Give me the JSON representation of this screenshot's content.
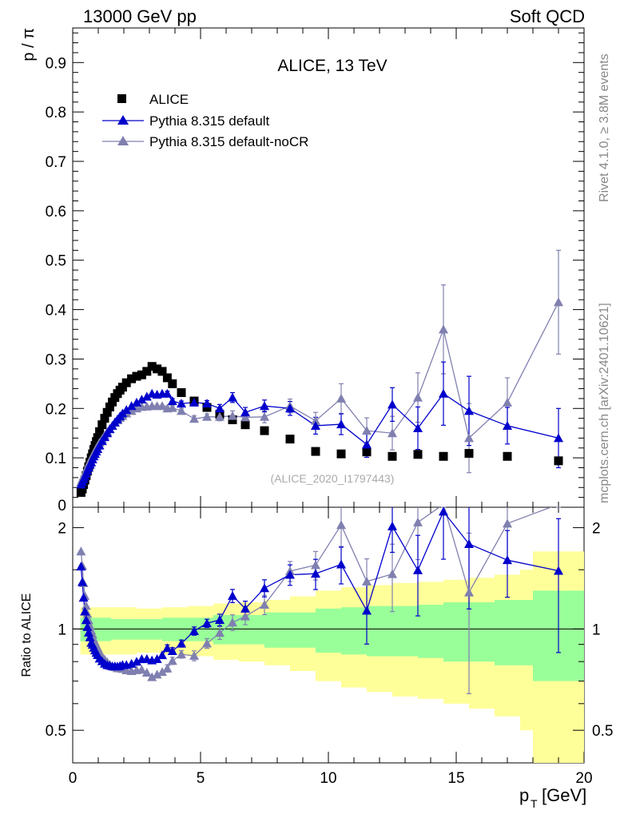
{
  "header": {
    "left": "13000 GeV pp",
    "right": "Soft QCD"
  },
  "side_labels": {
    "rivet": "Rivet 4.1.0, ≥ 3.8M events",
    "mcplots": "mcplots.cern.ch [arXiv:2401.10621]"
  },
  "chart_data": {
    "type": "scatter",
    "title": "ALICE, 13 TeV",
    "watermark": "(ALICE_2020_I1797443)",
    "ylabel": "p / π",
    "xlabel_main": "p",
    "xlabel_sub": "T",
    "xlabel_unit": "[GeV]",
    "ratio_ylabel": "Ratio to ALICE",
    "xlim": [
      0,
      20
    ],
    "ylim": [
      0,
      0.97
    ],
    "ratio_ylim": [
      0.4,
      2.3
    ],
    "x_ticks": [
      0,
      5,
      10,
      15,
      20
    ],
    "x_tick_labels": [
      "0",
      "5",
      "10",
      "15",
      "20"
    ],
    "y_ticks": [
      0.1,
      0.2,
      0.3,
      0.4,
      0.5,
      0.6,
      0.7,
      0.8,
      0.9
    ],
    "y_tick_labels": [
      "0.1",
      "0.2",
      "0.3",
      "0.4",
      "0.5",
      "0.6",
      "0.7",
      "0.8",
      "0.9"
    ],
    "y_zero_label": "0",
    "ratio_y_ticks": [
      0.5,
      1,
      2
    ],
    "ratio_y_tick_labels": [
      "0.5",
      "1",
      "2"
    ],
    "legend": {
      "position": "top-left",
      "entries": [
        "ALICE",
        "Pythia 8.315 default",
        "Pythia 8.315 default-noCR"
      ]
    },
    "colors": {
      "data": "#000000",
      "default": "#0000cc",
      "nocr": "#8080b0",
      "band_outer": "#ffff99",
      "band_inner": "#99ff99"
    },
    "series": [
      {
        "name": "ALICE",
        "x": [
          0.325,
          0.375,
          0.425,
          0.475,
          0.525,
          0.575,
          0.625,
          0.675,
          0.725,
          0.775,
          0.825,
          0.875,
          0.925,
          0.975,
          1.05,
          1.15,
          1.25,
          1.35,
          1.45,
          1.55,
          1.65,
          1.75,
          1.85,
          1.95,
          2.1,
          2.3,
          2.5,
          2.7,
          2.9,
          3.1,
          3.3,
          3.5,
          3.7,
          3.9,
          4.25,
          4.75,
          5.25,
          5.75,
          6.25,
          6.75,
          7.5,
          8.5,
          9.5,
          10.5,
          11.5,
          12.5,
          13.5,
          14.5,
          15.5,
          17.0,
          19.0
        ],
        "values": [
          0.03,
          0.037,
          0.046,
          0.055,
          0.064,
          0.073,
          0.082,
          0.091,
          0.1,
          0.108,
          0.117,
          0.125,
          0.133,
          0.141,
          0.153,
          0.167,
          0.18,
          0.192,
          0.203,
          0.213,
          0.222,
          0.23,
          0.237,
          0.243,
          0.252,
          0.26,
          0.265,
          0.268,
          0.275,
          0.285,
          0.28,
          0.275,
          0.262,
          0.25,
          0.232,
          0.215,
          0.202,
          0.188,
          0.177,
          0.167,
          0.155,
          0.138,
          0.113,
          0.108,
          0.112,
          0.103,
          0.107,
          0.103,
          0.109,
          0.103,
          0.094
        ]
      },
      {
        "name": "Pythia 8.315 default",
        "x": [
          0.325,
          0.375,
          0.425,
          0.475,
          0.525,
          0.575,
          0.625,
          0.675,
          0.725,
          0.775,
          0.825,
          0.875,
          0.925,
          0.975,
          1.05,
          1.15,
          1.25,
          1.35,
          1.45,
          1.55,
          1.65,
          1.75,
          1.85,
          1.95,
          2.1,
          2.3,
          2.5,
          2.7,
          2.9,
          3.1,
          3.3,
          3.5,
          3.7,
          3.9,
          4.25,
          4.75,
          5.25,
          5.75,
          6.25,
          6.75,
          7.5,
          8.5,
          9.5,
          10.5,
          11.5,
          12.5,
          13.5,
          14.5,
          15.5,
          17.0,
          19.0
        ],
        "values": [
          0.046,
          0.051,
          0.057,
          0.062,
          0.068,
          0.074,
          0.08,
          0.086,
          0.091,
          0.097,
          0.103,
          0.108,
          0.113,
          0.118,
          0.125,
          0.134,
          0.142,
          0.15,
          0.158,
          0.165,
          0.172,
          0.178,
          0.184,
          0.19,
          0.197,
          0.205,
          0.212,
          0.218,
          0.224,
          0.23,
          0.228,
          0.23,
          0.23,
          0.215,
          0.21,
          0.212,
          0.21,
          0.2,
          0.222,
          0.192,
          0.205,
          0.2,
          0.165,
          0.168,
          0.127,
          0.208,
          0.16,
          0.23,
          0.195,
          0.165,
          0.14
        ],
        "err": [
          0.001,
          0.001,
          0.001,
          0.001,
          0.001,
          0.001,
          0.001,
          0.001,
          0.001,
          0.001,
          0.001,
          0.001,
          0.001,
          0.001,
          0.001,
          0.001,
          0.001,
          0.001,
          0.001,
          0.001,
          0.001,
          0.001,
          0.002,
          0.002,
          0.002,
          0.002,
          0.002,
          0.003,
          0.003,
          0.003,
          0.004,
          0.004,
          0.005,
          0.005,
          0.005,
          0.006,
          0.006,
          0.008,
          0.01,
          0.01,
          0.012,
          0.014,
          0.017,
          0.021,
          0.026,
          0.034,
          0.043,
          0.064,
          0.07,
          0.037,
          0.06
        ]
      },
      {
        "name": "Pythia 8.315 default-noCR",
        "x": [
          0.325,
          0.375,
          0.425,
          0.475,
          0.525,
          0.575,
          0.625,
          0.675,
          0.725,
          0.775,
          0.825,
          0.875,
          0.925,
          0.975,
          1.05,
          1.15,
          1.25,
          1.35,
          1.45,
          1.55,
          1.65,
          1.75,
          1.85,
          1.95,
          2.1,
          2.3,
          2.5,
          2.7,
          2.9,
          3.1,
          3.3,
          3.5,
          3.7,
          3.9,
          4.25,
          4.75,
          5.25,
          5.75,
          6.25,
          6.75,
          7.5,
          8.5,
          9.5,
          10.5,
          11.5,
          12.5,
          13.5,
          14.5,
          15.5,
          17.0,
          19.0
        ],
        "values": [
          0.051,
          0.057,
          0.063,
          0.069,
          0.075,
          0.081,
          0.087,
          0.093,
          0.099,
          0.104,
          0.109,
          0.114,
          0.119,
          0.124,
          0.131,
          0.138,
          0.146,
          0.153,
          0.159,
          0.165,
          0.171,
          0.176,
          0.181,
          0.185,
          0.19,
          0.195,
          0.2,
          0.203,
          0.204,
          0.205,
          0.205,
          0.205,
          0.2,
          0.201,
          0.195,
          0.179,
          0.183,
          0.183,
          0.185,
          0.182,
          0.183,
          0.205,
          0.175,
          0.22,
          0.155,
          0.15,
          0.222,
          0.36,
          0.14,
          0.212,
          0.415
        ],
        "err": [
          0.001,
          0.001,
          0.001,
          0.001,
          0.001,
          0.001,
          0.001,
          0.001,
          0.001,
          0.001,
          0.001,
          0.001,
          0.001,
          0.001,
          0.001,
          0.001,
          0.001,
          0.001,
          0.001,
          0.001,
          0.001,
          0.001,
          0.002,
          0.002,
          0.002,
          0.002,
          0.002,
          0.003,
          0.003,
          0.003,
          0.004,
          0.004,
          0.005,
          0.005,
          0.005,
          0.006,
          0.006,
          0.008,
          0.01,
          0.01,
          0.012,
          0.014,
          0.017,
          0.03,
          0.026,
          0.034,
          0.05,
          0.09,
          0.07,
          0.05,
          0.105
        ]
      }
    ],
    "uncertainty_band": {
      "edges": [
        0.3,
        0.8,
        1.5,
        2.5,
        3.5,
        4.5,
        5.5,
        6.5,
        7.5,
        8.5,
        9.5,
        10.5,
        11.5,
        12.5,
        13.5,
        14.5,
        15.5,
        16.5,
        17.5,
        18.0,
        20.0
      ],
      "inner": [
        0.08,
        0.08,
        0.07,
        0.07,
        0.08,
        0.08,
        0.1,
        0.1,
        0.12,
        0.12,
        0.15,
        0.16,
        0.17,
        0.17,
        0.18,
        0.2,
        0.2,
        0.22,
        0.22,
        0.3
      ],
      "outer": [
        0.16,
        0.16,
        0.16,
        0.15,
        0.16,
        0.17,
        0.19,
        0.2,
        0.22,
        0.25,
        0.3,
        0.33,
        0.35,
        0.37,
        0.38,
        0.4,
        0.42,
        0.45,
        0.5,
        0.7
      ]
    }
  }
}
